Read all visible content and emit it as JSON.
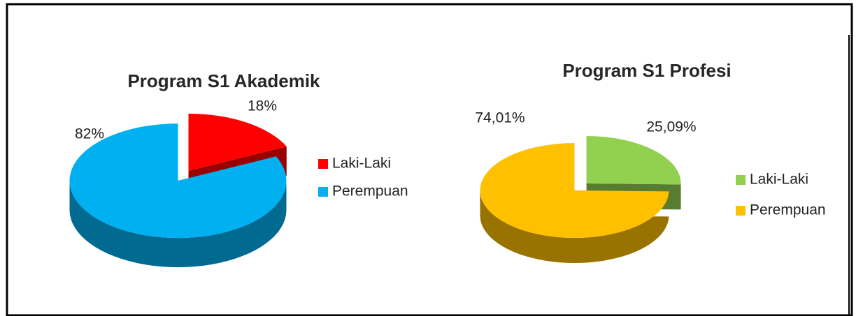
{
  "chart_data": [
    {
      "type": "pie",
      "title": "Program S1 Akademik",
      "categories": [
        "Laki-Laki",
        "Perempuan"
      ],
      "values": [
        18,
        82
      ],
      "value_labels": [
        "18%",
        "82%"
      ],
      "colors": [
        "#ff0000",
        "#00b0f0"
      ]
    },
    {
      "type": "pie",
      "title": "Program S1 Profesi",
      "categories": [
        "Laki-Laki",
        "Perempuan"
      ],
      "values": [
        25.09,
        74.01
      ],
      "value_labels": [
        "25,09%",
        "74,01%"
      ],
      "colors": [
        "#92d050",
        "#ffc000"
      ]
    }
  ]
}
